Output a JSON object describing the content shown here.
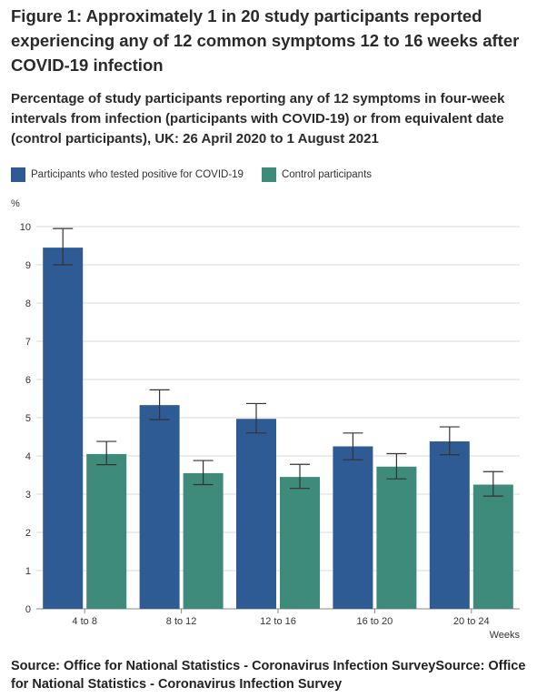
{
  "title": "Figure 1: Approximately 1 in 20 study participants reported experiencing any of 12 common symptoms 12 to 16 weeks after COVID-19 infection",
  "subtitle": "Percentage of study participants reporting any of 12 symptoms in four-week intervals from infection (participants with COVID-19) or from equivalent date (control participants), UK: 26 April 2020 to 1 August 2021",
  "source": "Source: Office for National Statistics - Coronavirus Infection SurveySource: Office for National Statistics - Coronavirus Infection Survey",
  "chart_data": {
    "type": "bar",
    "title": "Figure 1: Approximately 1 in 20 study participants reported experiencing any of 12 common symptoms 12 to 16 weeks after COVID-19 infection",
    "subtitle": "Percentage of study participants reporting any of 12 symptoms in four-week intervals from infection (participants with COVID-19) or from equivalent date (control participants), UK: 26 April 2020 to 1 August 2021",
    "xlabel": "Weeks",
    "ylabel": "%",
    "ylim": [
      0,
      10
    ],
    "yticks": [
      0,
      1,
      2,
      3,
      4,
      5,
      6,
      7,
      8,
      9,
      10
    ],
    "grid": true,
    "legend_position": "top-left",
    "categories": [
      "4 to 8",
      "8 to 12",
      "12 to 16",
      "16 to 20",
      "20 to 24"
    ],
    "series": [
      {
        "name": "Participants who tested positive for COVID-19",
        "color": "#2e5b93",
        "values": [
          9.45,
          5.33,
          4.97,
          4.25,
          4.38
        ],
        "error_low": [
          9.0,
          4.95,
          4.6,
          3.9,
          4.03
        ],
        "error_high": [
          9.95,
          5.73,
          5.37,
          4.6,
          4.76
        ]
      },
      {
        "name": "Control participants",
        "color": "#3f8b7b",
        "values": [
          4.05,
          3.55,
          3.45,
          3.72,
          3.25
        ],
        "error_low": [
          3.77,
          3.25,
          3.15,
          3.4,
          2.95
        ],
        "error_high": [
          4.38,
          3.88,
          3.78,
          4.06,
          3.59
        ]
      }
    ]
  }
}
